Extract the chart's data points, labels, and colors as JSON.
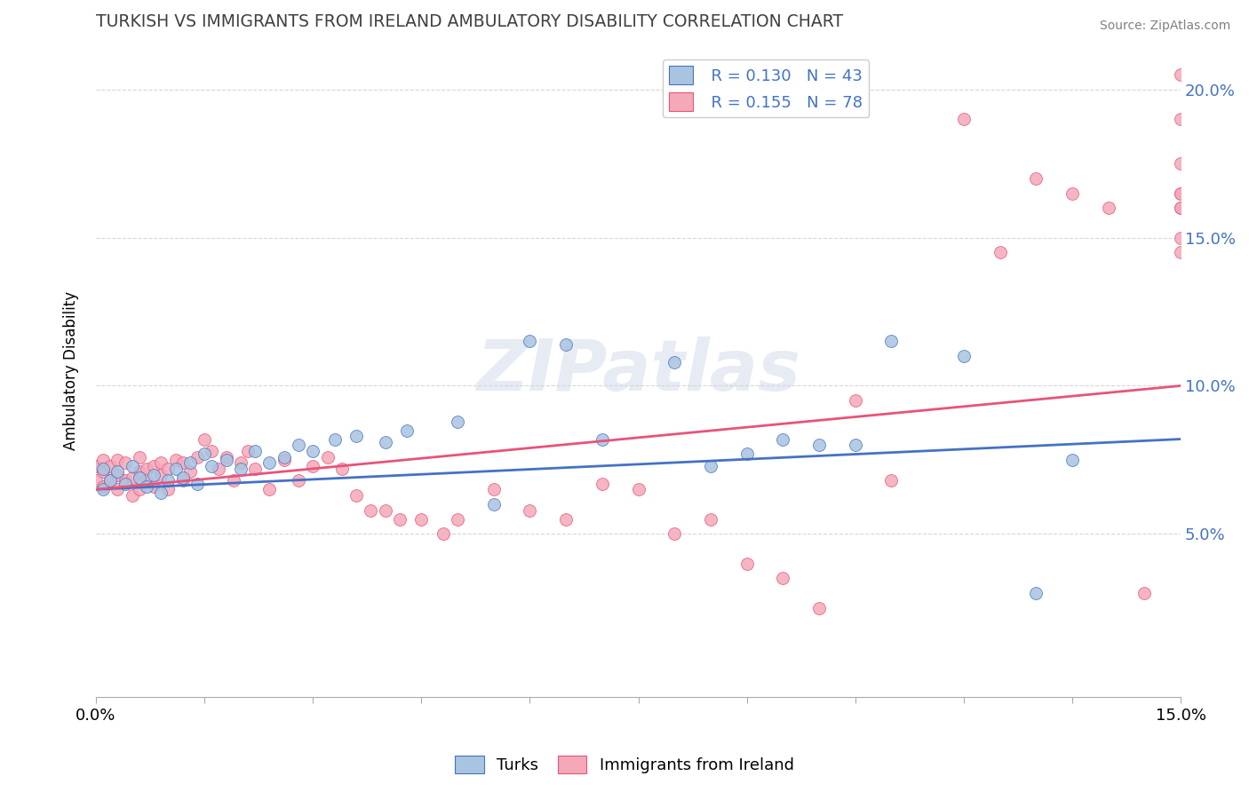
{
  "title": "TURKISH VS IMMIGRANTS FROM IRELAND AMBULATORY DISABILITY CORRELATION CHART",
  "source": "Source: ZipAtlas.com",
  "ylabel": "Ambulatory Disability",
  "watermark": "ZIPatlas",
  "xlim": [
    0.0,
    0.15
  ],
  "ylim": [
    -0.005,
    0.215
  ],
  "xticks": [
    0.0,
    0.015,
    0.03,
    0.045,
    0.06,
    0.075,
    0.09,
    0.105,
    0.12,
    0.135,
    0.15
  ],
  "xtick_labels": [
    "0.0%",
    "",
    "",
    "",
    "",
    "",
    "",
    "",
    "",
    "",
    "15.0%"
  ],
  "ytick_positions": [
    0.05,
    0.1,
    0.15,
    0.2
  ],
  "ytick_labels": [
    "5.0%",
    "10.0%",
    "15.0%",
    "20.0%"
  ],
  "turks_color": "#a8c4e0",
  "ireland_color": "#f4a8b8",
  "turks_line_color": "#4472c4",
  "ireland_line_color": "#e8537a",
  "legend_R_turks": "R = 0.130",
  "legend_N_turks": "N = 43",
  "legend_R_ireland": "R = 0.155",
  "legend_N_ireland": "N = 78",
  "background_color": "#ffffff",
  "grid_color": "#cccccc",
  "title_color": "#404040",
  "axis_label_color": "#4472c4",
  "turks_x": [
    0.001,
    0.001,
    0.002,
    0.003,
    0.004,
    0.005,
    0.006,
    0.007,
    0.008,
    0.009,
    0.01,
    0.011,
    0.012,
    0.013,
    0.014,
    0.015,
    0.016,
    0.018,
    0.02,
    0.022,
    0.024,
    0.026,
    0.028,
    0.03,
    0.033,
    0.036,
    0.04,
    0.043,
    0.05,
    0.055,
    0.06,
    0.065,
    0.07,
    0.08,
    0.085,
    0.09,
    0.095,
    0.1,
    0.105,
    0.11,
    0.12,
    0.13,
    0.135
  ],
  "turks_y": [
    0.065,
    0.072,
    0.068,
    0.071,
    0.067,
    0.073,
    0.069,
    0.066,
    0.07,
    0.064,
    0.068,
    0.072,
    0.069,
    0.074,
    0.067,
    0.077,
    0.073,
    0.075,
    0.072,
    0.078,
    0.074,
    0.076,
    0.08,
    0.078,
    0.082,
    0.083,
    0.081,
    0.085,
    0.088,
    0.06,
    0.115,
    0.114,
    0.082,
    0.108,
    0.073,
    0.077,
    0.082,
    0.08,
    0.08,
    0.115,
    0.11,
    0.03,
    0.075
  ],
  "ireland_x": [
    0.0,
    0.0,
    0.001,
    0.001,
    0.001,
    0.002,
    0.002,
    0.003,
    0.003,
    0.003,
    0.004,
    0.004,
    0.005,
    0.005,
    0.006,
    0.006,
    0.006,
    0.007,
    0.007,
    0.008,
    0.008,
    0.009,
    0.009,
    0.01,
    0.01,
    0.011,
    0.012,
    0.012,
    0.013,
    0.014,
    0.015,
    0.016,
    0.017,
    0.018,
    0.019,
    0.02,
    0.021,
    0.022,
    0.024,
    0.026,
    0.028,
    0.03,
    0.032,
    0.034,
    0.036,
    0.038,
    0.04,
    0.042,
    0.045,
    0.048,
    0.05,
    0.055,
    0.06,
    0.065,
    0.07,
    0.075,
    0.08,
    0.085,
    0.09,
    0.095,
    0.1,
    0.105,
    0.11,
    0.12,
    0.125,
    0.13,
    0.135,
    0.14,
    0.145,
    0.15,
    0.15,
    0.15,
    0.15,
    0.15,
    0.15,
    0.15,
    0.15,
    0.15
  ],
  "ireland_y": [
    0.068,
    0.073,
    0.066,
    0.071,
    0.075,
    0.068,
    0.073,
    0.065,
    0.07,
    0.075,
    0.068,
    0.074,
    0.063,
    0.069,
    0.071,
    0.076,
    0.065,
    0.072,
    0.068,
    0.073,
    0.066,
    0.07,
    0.074,
    0.065,
    0.072,
    0.075,
    0.068,
    0.074,
    0.071,
    0.076,
    0.082,
    0.078,
    0.072,
    0.076,
    0.068,
    0.074,
    0.078,
    0.072,
    0.065,
    0.075,
    0.068,
    0.073,
    0.076,
    0.072,
    0.063,
    0.058,
    0.058,
    0.055,
    0.055,
    0.05,
    0.055,
    0.065,
    0.058,
    0.055,
    0.067,
    0.065,
    0.05,
    0.055,
    0.04,
    0.035,
    0.025,
    0.095,
    0.068,
    0.19,
    0.145,
    0.17,
    0.165,
    0.16,
    0.03,
    0.16,
    0.165,
    0.205,
    0.19,
    0.175,
    0.165,
    0.16,
    0.15,
    0.145
  ],
  "turks_trendline_x": [
    0.0,
    0.15
  ],
  "turks_trendline_y": [
    0.065,
    0.082
  ],
  "ireland_trendline_x": [
    0.0,
    0.15
  ],
  "ireland_trendline_y": [
    0.065,
    0.1
  ]
}
